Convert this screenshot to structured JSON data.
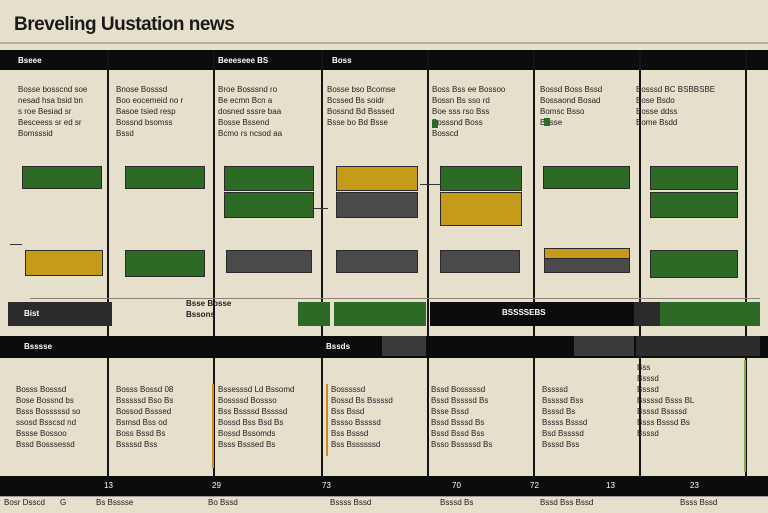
{
  "page": {
    "title": "Breveling Uustation news"
  },
  "columns": [
    {
      "header": "Bseee",
      "lines": [
        "Bosse bosscnd soe",
        "nesad hsa bsid bn",
        "s roe Besiad sr",
        "Besceess sr ed sr",
        "Bomsssid"
      ]
    },
    {
      "header": "",
      "lines": [
        "Bnose Bosssd",
        "Boo eocemeid no r",
        "Basoe tsied resp",
        "Bossnd bsomss",
        "Bssd"
      ]
    },
    {
      "header": "Beeeseee BS",
      "lines": [
        "Broe Bosssnd ro",
        "Be ecmn Bcn a",
        "dosned sssre baa",
        "Bosse Bssend",
        "Bcmo rs ncsod aa"
      ]
    },
    {
      "header": "Boss",
      "lines": [
        "Bosse bso Bcomse",
        "Bcssed Bs soidr",
        "Bossnd Bd Bsssed",
        "Bsse bo Bd Bsse"
      ]
    },
    {
      "header": "",
      "lines": [
        "Boss Bss ee Bossoo",
        "Bossn Bs sso rd",
        "Boe sss rso Bss",
        "Bosssnd Boss",
        "Bosscd"
      ]
    },
    {
      "header": "",
      "lines": [
        "Bossd Boss Bssd",
        "Bossaond Bosad",
        "Bomsc Bsso",
        "Bosse"
      ]
    },
    {
      "header": "",
      "lines": [
        "Bosssd BC BSBBSBE",
        "Bose Bsdo",
        "Bosse ddss",
        "Bome Bsdd"
      ]
    }
  ],
  "middle_labels": {
    "left_small": "Bist",
    "center": "Bsse Bosse",
    "center2": "Bssons",
    "right": "BSSSSEBS"
  },
  "lower_headers": [
    "Bsssse",
    "",
    "",
    "Bssds",
    "",
    "",
    ""
  ],
  "lower_columns": [
    {
      "lines": [
        "Bosss Bosssd",
        "Bose Bossnd bs",
        "Bsss Bosssssd so",
        "ssosd Bsscsd nd",
        "Bssse Bossoo",
        "Bssd Bosssessd"
      ]
    },
    {
      "lines": [
        "Bosss Bossd 08",
        "Bsssssd Bso Bs",
        "Bossod Bsssed",
        "Bsmsd Bss od",
        "Boss Bssd Bs",
        "Bssssd Bss"
      ]
    },
    {
      "lines": [
        "Bssesssd Ld Bssomd",
        "Bossssd Bossso",
        "Bss Bssssd Bssssd",
        "Bossd Bss Bsd Bs",
        "Bossd Bssomds",
        "Bsss Bsssed Bs"
      ]
    },
    {
      "lines": [
        "Bosssssd",
        "Bossd Bs Bssssd",
        "Bss Bssd",
        "Bssso Bssssd",
        "Bss Bsssd",
        "Bss Bssssssd"
      ]
    },
    {
      "lines": [
        "Bssd Bosssssd",
        "Bssd Bssssd Bs",
        "Bsse Bssd",
        "Bssd Bsssd Bs",
        "Bssd Bssd Bss",
        "Bsso Bsssssd Bs"
      ]
    },
    {
      "lines": [
        "Bssssd",
        "Bssssd Bss",
        "Bsssd Bs",
        "Bssss Bsssd",
        "Bsd Bssssd",
        "Bsssd Bss"
      ]
    },
    {
      "lines": [
        "Bss",
        "Bsssd",
        "Bsssd",
        "Bssssd Bsss BL",
        "Bsssd Bssssd",
        "Bsss Bsssd Bs",
        "Bsssd"
      ]
    }
  ],
  "footer_numbers": [
    "13",
    "29",
    "73",
    "70",
    "72",
    "13",
    "23"
  ],
  "bottom_texts": [
    "Bosr Dsscd",
    "G",
    "Bs Bsssse",
    "Bo Bssd",
    "Bssss Bssd",
    "Bsssd Bs",
    "Bssd Bss Bssd",
    "Bsss Bssd"
  ],
  "colors": {
    "green": "#2d6a25",
    "yellow": "#c59b1c",
    "dark": "#4a4a4a",
    "black": "#0c0c0c",
    "paper": "#e6dfcb"
  }
}
